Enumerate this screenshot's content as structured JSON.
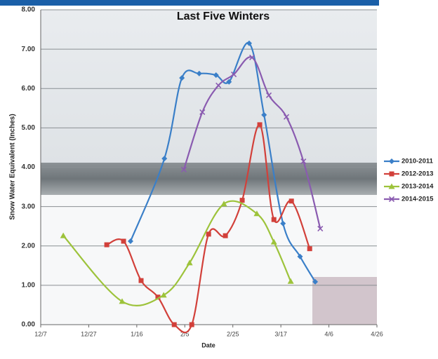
{
  "chart_data": {
    "type": "line",
    "title": "Last Five Winters",
    "x_label": "Date",
    "y_label": "Snow Water Equivalent (Inches)",
    "xlim": [
      0,
      140
    ],
    "xticks": [
      {
        "value": 0,
        "label": "12/7"
      },
      {
        "value": 20,
        "label": "12/27"
      },
      {
        "value": 40,
        "label": "1/16"
      },
      {
        "value": 60,
        "label": "2/5"
      },
      {
        "value": 80,
        "label": "2/25"
      },
      {
        "value": 100,
        "label": "3/17"
      },
      {
        "value": 120,
        "label": "4/6"
      },
      {
        "value": 140,
        "label": "4/26"
      }
    ],
    "ylim": [
      0,
      8
    ],
    "yticks": [
      {
        "value": 0,
        "label": "0.00"
      },
      {
        "value": 1,
        "label": "1.00"
      },
      {
        "value": 2,
        "label": "2.00"
      },
      {
        "value": 3,
        "label": "3.00"
      },
      {
        "value": 4,
        "label": "4.00"
      },
      {
        "value": 5,
        "label": "5.00"
      },
      {
        "value": 6,
        "label": "6.00"
      },
      {
        "value": 7,
        "label": "7.00"
      },
      {
        "value": 8,
        "label": "8.00"
      }
    ],
    "grid": true,
    "legend": "right",
    "series": [
      {
        "name": "2010-2011",
        "color": "#3a7fc8",
        "marker": "diamond",
        "x": [
          37.4,
          51.5,
          58.8,
          66,
          73,
          78.4,
          86.8,
          93,
          100.9,
          108,
          114.3
        ],
        "values": [
          2.12,
          4.22,
          6.27,
          6.38,
          6.34,
          6.17,
          7.15,
          5.33,
          2.57,
          1.73,
          1.09
        ]
      },
      {
        "name": "2012-2013",
        "color": "#d2403a",
        "marker": "square",
        "x": [
          27.5,
          34.5,
          41.8,
          48.8,
          55.6,
          62.9,
          69.9,
          76.9,
          83.9,
          91.2,
          97.1,
          104.4,
          112
        ],
        "values": [
          2.03,
          2.12,
          1.12,
          0.7,
          0,
          0,
          2.3,
          2.26,
          3.16,
          5.08,
          2.67,
          3.14,
          1.93
        ]
      },
      {
        "name": "2013-2014",
        "color": "#9dc33b",
        "marker": "triangle",
        "x": [
          9.4,
          33.9,
          51.2,
          62,
          76.3,
          90,
          97.1,
          104.1
        ],
        "values": [
          2.26,
          0.59,
          0.75,
          1.57,
          3.07,
          2.82,
          2.1,
          1.1
        ]
      },
      {
        "name": "2014-2015",
        "color": "#8a5bb0",
        "marker": "x",
        "x": [
          59.6,
          67.3,
          74,
          80.4,
          88,
          95,
          102.3,
          109.4,
          116.4
        ],
        "values": [
          3.94,
          5.4,
          6.08,
          6.36,
          6.79,
          5.83,
          5.28,
          4.15,
          2.44
        ]
      }
    ]
  }
}
